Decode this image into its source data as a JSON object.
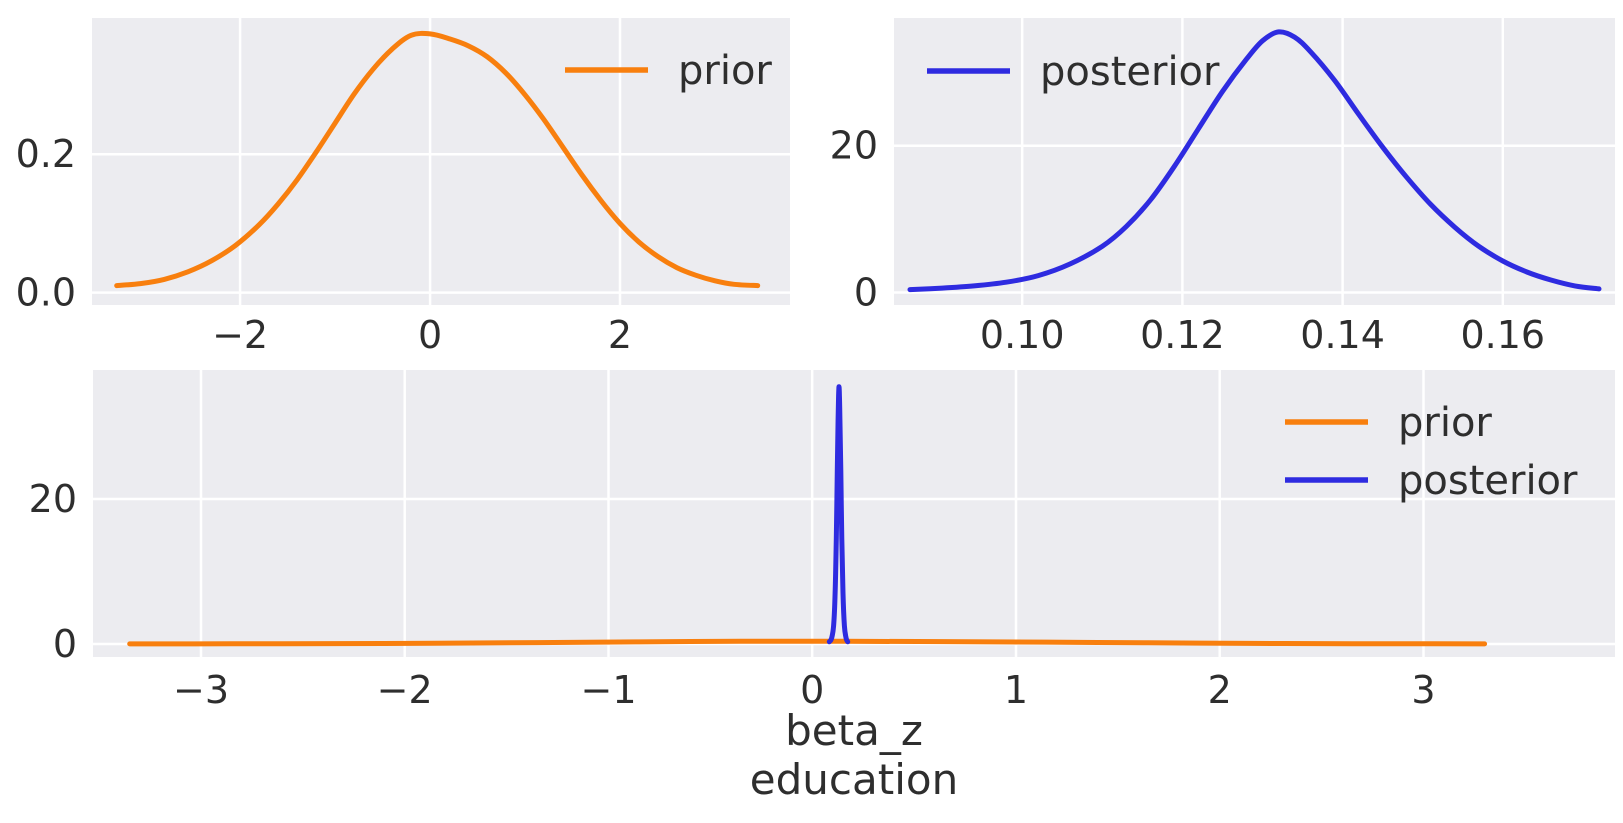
{
  "figure": {
    "background": "#ffffff",
    "axes_background": "#ececf0",
    "grid_color": "#ffffff",
    "text_color": "#2e2e2e",
    "prior_color": "#f87f0e",
    "posterior_color": "#2e2be0"
  },
  "chart_data": [
    {
      "id": "prior-marginal",
      "type": "line",
      "title": "",
      "xlabel": "",
      "ylabel": "",
      "grid": true,
      "xlim": [
        -3.56,
        3.79
      ],
      "ylim": [
        -0.018,
        0.397
      ],
      "xticks": [
        -2,
        0,
        2
      ],
      "xtick_labels": [
        "−2",
        "0",
        "2"
      ],
      "yticks": [
        0.0,
        0.2
      ],
      "ytick_labels": [
        "0.0",
        "0.2"
      ],
      "legend": {
        "position": "upper right",
        "entries": [
          {
            "label": "prior",
            "color": "#f87f0e"
          }
        ]
      },
      "series": [
        {
          "name": "prior",
          "color": "#f87f0e",
          "x": [
            -3.3,
            -3.05,
            -2.8,
            -2.55,
            -2.3,
            -2.05,
            -1.8,
            -1.6,
            -1.4,
            -1.2,
            -1.0,
            -0.8,
            -0.6,
            -0.4,
            -0.2,
            0.0,
            0.2,
            0.4,
            0.6,
            0.8,
            1.0,
            1.2,
            1.4,
            1.6,
            1.8,
            2.0,
            2.2,
            2.4,
            2.6,
            2.8,
            3.0,
            3.2,
            3.45
          ],
          "y": [
            0.01,
            0.013,
            0.019,
            0.03,
            0.046,
            0.068,
            0.098,
            0.128,
            0.163,
            0.203,
            0.245,
            0.287,
            0.323,
            0.352,
            0.372,
            0.374,
            0.367,
            0.357,
            0.341,
            0.317,
            0.286,
            0.25,
            0.21,
            0.17,
            0.133,
            0.1,
            0.073,
            0.052,
            0.036,
            0.025,
            0.017,
            0.012,
            0.01
          ]
        }
      ]
    },
    {
      "id": "posterior-marginal",
      "type": "line",
      "title": "",
      "xlabel": "",
      "ylabel": "",
      "grid": true,
      "xlim": [
        0.084,
        0.174
      ],
      "ylim": [
        -1.7,
        37.4
      ],
      "xticks": [
        0.1,
        0.12,
        0.14,
        0.16
      ],
      "xtick_labels": [
        "0.10",
        "0.12",
        "0.14",
        "0.16"
      ],
      "yticks": [
        0,
        20
      ],
      "ytick_labels": [
        "0",
        "20"
      ],
      "legend": {
        "position": "upper left",
        "entries": [
          {
            "label": "posterior",
            "color": "#2e2be0"
          }
        ]
      },
      "series": [
        {
          "name": "posterior",
          "color": "#2e2be0",
          "x": [
            0.086,
            0.09,
            0.094,
            0.098,
            0.102,
            0.106,
            0.11,
            0.113,
            0.116,
            0.119,
            0.122,
            0.125,
            0.128,
            0.13,
            0.132,
            0.134,
            0.136,
            0.139,
            0.142,
            0.145,
            0.148,
            0.151,
            0.154,
            0.157,
            0.16,
            0.163,
            0.166,
            0.169,
            0.172
          ],
          "y": [
            0.4,
            0.6,
            0.9,
            1.4,
            2.3,
            3.9,
            6.3,
            9.0,
            12.6,
            17.2,
            22.3,
            27.4,
            31.8,
            34.3,
            35.5,
            34.8,
            32.8,
            28.9,
            24.3,
            19.8,
            15.7,
            12.0,
            8.9,
            6.3,
            4.3,
            2.8,
            1.7,
            0.9,
            0.5
          ]
        }
      ]
    },
    {
      "id": "prior-posterior-overlay",
      "type": "line",
      "title": "",
      "xlabel": "beta_z\neducation",
      "xlabel_lines": [
        "beta_z",
        "education"
      ],
      "ylabel": "",
      "grid": true,
      "xlim": [
        -3.53,
        3.94
      ],
      "ylim": [
        -1.8,
        37.8
      ],
      "xticks": [
        -3,
        -2,
        -1,
        0,
        1,
        2,
        3
      ],
      "xtick_labels": [
        "−3",
        "−2",
        "−1",
        "0",
        "1",
        "2",
        "3"
      ],
      "yticks": [
        0,
        20
      ],
      "ytick_labels": [
        "0",
        "20"
      ],
      "legend": {
        "position": "upper right",
        "entries": [
          {
            "label": "prior",
            "color": "#f87f0e"
          },
          {
            "label": "posterior",
            "color": "#2e2be0"
          }
        ]
      },
      "series": [
        {
          "name": "prior",
          "color": "#f87f0e",
          "x": [
            -3.35,
            -2.85,
            -2.35,
            -1.85,
            -1.35,
            -0.85,
            -0.35,
            0.15,
            0.65,
            1.15,
            1.65,
            2.15,
            2.65,
            3.05,
            3.3
          ],
          "y": [
            0.01,
            0.02,
            0.05,
            0.1,
            0.19,
            0.29,
            0.36,
            0.37,
            0.33,
            0.25,
            0.16,
            0.08,
            0.035,
            0.015,
            0.01
          ]
        },
        {
          "name": "posterior",
          "color": "#2e2be0",
          "x": [
            0.084,
            0.095,
            0.105,
            0.112,
            0.118,
            0.123,
            0.127,
            0.1295,
            0.1315,
            0.1335,
            0.136,
            0.14,
            0.145,
            0.151,
            0.158,
            0.166,
            0.174
          ],
          "y": [
            0.3,
            0.8,
            2.5,
            7.0,
            14.5,
            24.0,
            31.0,
            34.3,
            35.5,
            34.3,
            31.0,
            24.0,
            14.5,
            7.0,
            2.5,
            0.8,
            0.3
          ]
        }
      ]
    }
  ]
}
